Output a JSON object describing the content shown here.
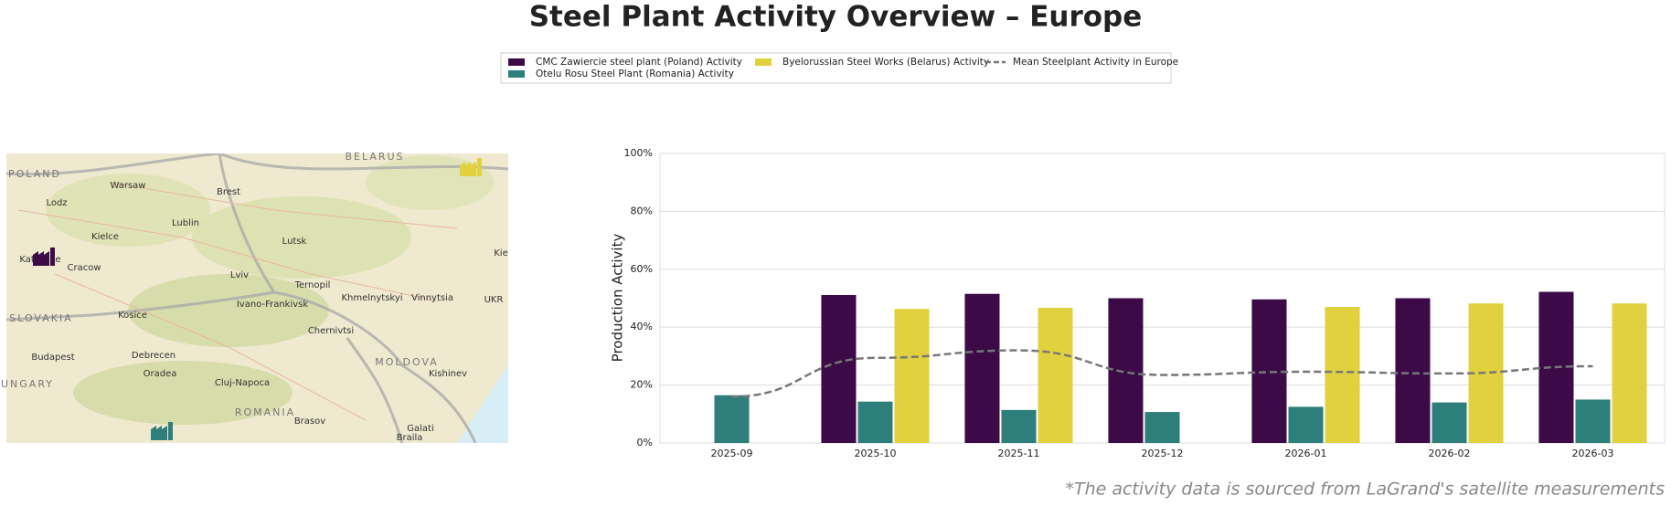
{
  "chart_data": {
    "type": "bar",
    "title": "Steel Plant Activity Overview – Europe",
    "y_label": "Production Activity",
    "footnote": "*The activity data is sourced from LaGrand's satellite measurements",
    "categories": [
      "2025-09",
      "2025-10",
      "2025-11",
      "2025-12",
      "2026-01",
      "2026-02",
      "2026-03"
    ],
    "series": [
      {
        "name": "CMC Zawiercie steel plant (Poland) Activity",
        "color": "#3b0a47",
        "values": [
          null,
          51.1,
          51.5,
          50.0,
          49.6,
          50.0,
          52.2
        ]
      },
      {
        "name": "Otelu Rosu Steel Plant (Romania) Activity",
        "color": "#2e7f7c",
        "values": [
          16.5,
          14.3,
          11.4,
          10.7,
          12.5,
          14.0,
          15.0
        ]
      },
      {
        "name": "Byelorussian Steel Works (Belarus) Activity",
        "color": "#e2d13e",
        "values": [
          null,
          46.3,
          46.7,
          null,
          47.0,
          48.2,
          48.2
        ]
      },
      {
        "name": "Mean Steelplant Activity in Europe",
        "type": "line",
        "dashed": true,
        "color": "#777777",
        "values": [
          16.0,
          29.4,
          32.0,
          23.5,
          24.6,
          24.0,
          26.5
        ]
      }
    ],
    "ylim": [
      0,
      100
    ],
    "yticks": [
      {
        "value": 0,
        "label": "0%"
      },
      {
        "value": 20,
        "label": "20%"
      },
      {
        "value": 40,
        "label": "40%"
      },
      {
        "value": 60,
        "label": "60%"
      },
      {
        "value": 80,
        "label": "80%"
      },
      {
        "value": 100,
        "label": "100%"
      }
    ],
    "grid": true,
    "legend": "upper center"
  },
  "map": {
    "labels": [
      "BELARUS",
      "POLAND",
      "Warsaw",
      "Lodz",
      "Brest",
      "Lublin",
      "Kielce",
      "Katowice",
      "Cracow",
      "Lutsk",
      "Lviv",
      "Ternopil",
      "Ivano-Frankivsk",
      "Khmelnytskyi",
      "Vinnytsia",
      "Kie",
      "SLOVAKIA",
      "Kosice",
      "UKR",
      "Chernivtsi",
      "Budapest",
      "Debrecen",
      "Oradea",
      "MOLDOVA",
      "Kishinev",
      "UNGARY",
      "Cluj-Napoca",
      "ROMANIA",
      "Brasov",
      "Galati",
      "Braila"
    ]
  }
}
